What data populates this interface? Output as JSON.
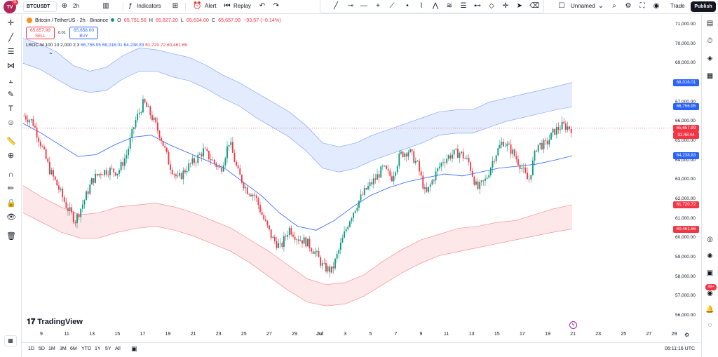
{
  "topbar": {
    "logo_badge": "11",
    "symbol": "BTCUSDT",
    "interval": "2h",
    "indicators_label": "Indicators",
    "alert_label": "Alert",
    "replay_label": "Replay",
    "layout_name": "Unnamed",
    "trade_label": "Trade",
    "publish_label": "Publish"
  },
  "legend": {
    "title": "Bitcoin / TetherUS · 2h · Binance",
    "open_label": "O",
    "open": "65,751.56",
    "high_label": "H",
    "high": "65,827.20",
    "low_label": "L",
    "low": "65,634.00",
    "close_label": "C",
    "close": "65,657.99",
    "change": "−93.57 (−0.14%)",
    "sell_price": "65,657.99",
    "sell_label": "SELL",
    "spread": "0.01",
    "buy_price": "65,658.00",
    "buy_label": "BUY",
    "indicator_name": "LROC-M 100 10 2,000 2 3",
    "ind_v1": "66,756.95",
    "ind_v2": "68,016.01",
    "ind_v3": "64,238.83",
    "ind_v4": "61,720.72",
    "ind_v5": "60,461.66"
  },
  "price_axis": {
    "labels": [
      "71,000.00",
      "70,000.00",
      "69,000.00",
      "67,000.00",
      "66,000.00",
      "65,000.00",
      "64,000.00",
      "63,000.00",
      "62,000.00",
      "61,000.00",
      "60,000.00",
      "59,000.00",
      "58,000.00",
      "57,000.00",
      "56,000.00"
    ],
    "tag_upper_outer": "68,016.01",
    "tag_upper_inner": "66,756.95",
    "tag_last_price": "65,657.99",
    "tag_countdown": "01:48:44",
    "tag_mid": "64,238.83",
    "tag_lower_inner": "61,720.72",
    "tag_lower_outer": "60,461.66"
  },
  "time_axis": {
    "labels": [
      "9",
      "11",
      "13",
      "15",
      "17",
      "19",
      "21",
      "23",
      "25",
      "27",
      "29",
      "Jul",
      "3",
      "5",
      "7",
      "9",
      "11",
      "13",
      "15",
      "17",
      "19",
      "21",
      "23",
      "25",
      "27",
      "29"
    ]
  },
  "bottombar": {
    "ranges": [
      "1D",
      "5D",
      "1M",
      "3M",
      "6M",
      "YTD",
      "1Y",
      "5Y",
      "All"
    ],
    "clock": "06:11:16 UTC"
  },
  "branding": {
    "logo_text": "TradingView"
  },
  "right_badge": "99+",
  "colors": {
    "up": "#089981",
    "down": "#f23645",
    "upper_band": "#2962ff",
    "lower_band": "#f23645",
    "mid_line": "#2962ff"
  },
  "chart_data": {
    "type": "candlestick",
    "title": "Bitcoin / TetherUS · 2h · Binance",
    "ylim": [
      55500,
      71500
    ],
    "x_ticks": [
      "9",
      "11",
      "13",
      "15",
      "17",
      "19",
      "21",
      "23",
      "25",
      "27",
      "29",
      "Jul",
      "3",
      "5",
      "7",
      "9",
      "11",
      "13",
      "15",
      "17",
      "19",
      "21",
      "23",
      "25",
      "27",
      "29"
    ],
    "close_path": [
      66300,
      66000,
      64800,
      63500,
      62600,
      61600,
      60900,
      61900,
      63000,
      63400,
      63500,
      63400,
      64300,
      66000,
      67000,
      66200,
      65200,
      63800,
      63000,
      63600,
      64000,
      64500,
      64000,
      63500,
      65000,
      63400,
      62500,
      62200,
      61000,
      60000,
      59500,
      60500,
      60000,
      59800,
      59300,
      58500,
      58300,
      59600,
      60900,
      61800,
      62500,
      63000,
      63600,
      63100,
      64300,
      64500,
      63800,
      62200,
      63200,
      64000,
      64300,
      64400,
      63900,
      62500,
      63000,
      64200,
      65000,
      64500,
      63800,
      62900,
      64800,
      64800,
      65500,
      65800,
      65658
    ],
    "upper_outer_band": [
      70300,
      70000,
      69600,
      68900,
      68600,
      68800,
      69400,
      69800,
      69700,
      69500,
      69300,
      68900,
      68400,
      68000,
      67500,
      67000,
      66500,
      65800,
      64900,
      64700,
      64900,
      65300,
      65600,
      65900,
      66200,
      66500,
      66600,
      66600,
      67000,
      67200,
      67400,
      67600,
      67800,
      68016
    ],
    "upper_inner_band": [
      69000,
      68700,
      68200,
      67700,
      67500,
      67600,
      68200,
      68600,
      68600,
      68300,
      68100,
      67700,
      67200,
      66800,
      66200,
      65700,
      65200,
      64500,
      63600,
      63400,
      63600,
      64000,
      64300,
      64600,
      64900,
      65300,
      65400,
      65400,
      65700,
      66000,
      66200,
      66400,
      66600,
      66757
    ],
    "mid_line": [
      65900,
      65400,
      64800,
      64200,
      64300,
      64800,
      65200,
      65300,
      64800,
      64400,
      64000,
      63600,
      62900,
      62200,
      61300,
      60600,
      60400,
      60900,
      61600,
      62200,
      62600,
      62900,
      63100,
      63300,
      63200,
      63400,
      63600,
      63700,
      63800,
      64000,
      64238
    ],
    "lower_inner_band": [
      62700,
      62100,
      61600,
      61200,
      61300,
      61600,
      61700,
      61800,
      61600,
      61300,
      60900,
      60500,
      59900,
      59300,
      58600,
      57900,
      57600,
      57700,
      58100,
      58800,
      59400,
      59900,
      60200,
      60500,
      60600,
      60800,
      60900,
      61200,
      61500,
      61720
    ],
    "lower_outer_band": [
      61300,
      60800,
      60300,
      60000,
      60000,
      60300,
      60500,
      60600,
      60400,
      60100,
      59700,
      59300,
      58700,
      58000,
      57300,
      56700,
      56500,
      56600,
      57000,
      57600,
      58200,
      58700,
      59100,
      59300,
      59500,
      59700,
      59900,
      60100,
      60300,
      60462
    ],
    "last_price": 65657.99
  }
}
